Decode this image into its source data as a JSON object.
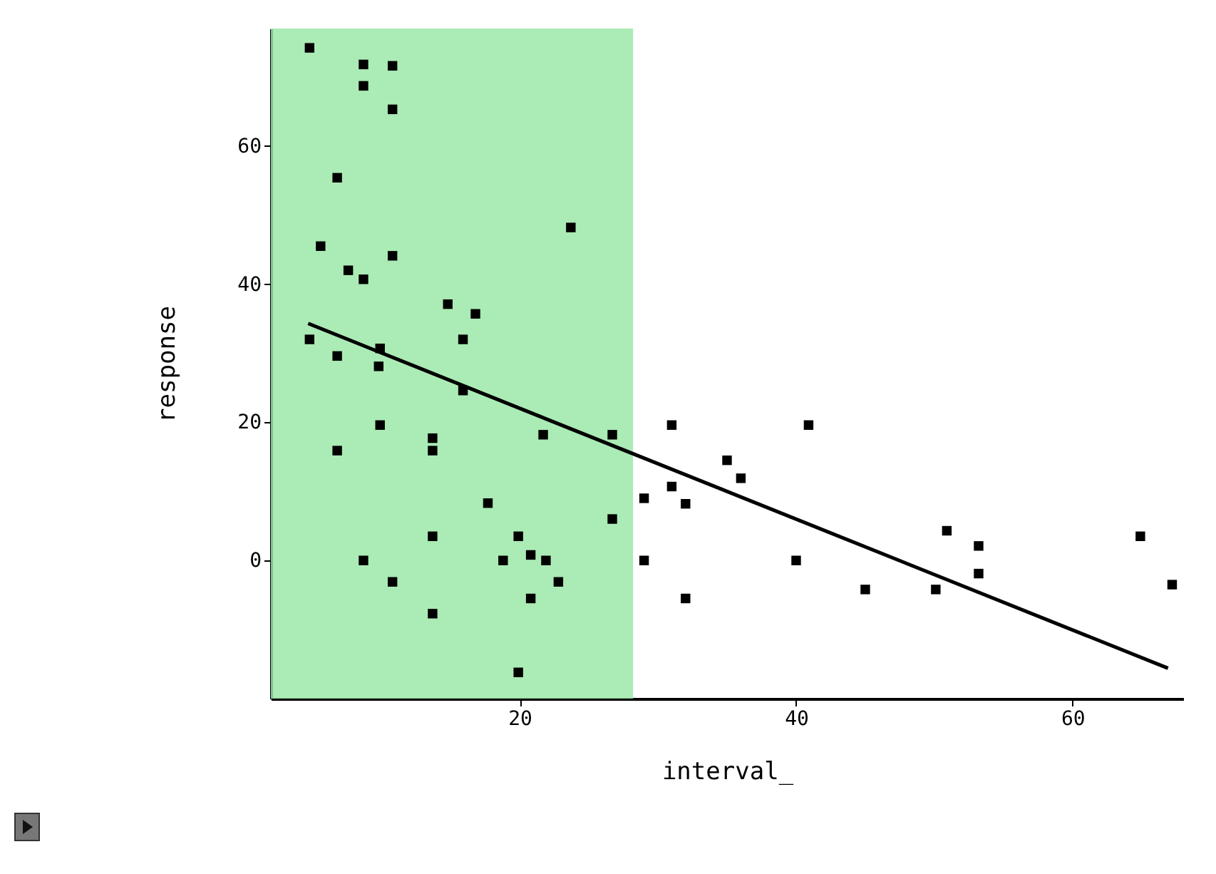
{
  "chart_data": {
    "type": "scatter",
    "xlabel": "interval_",
    "ylabel": "response",
    "xlim": [
      2,
      68
    ],
    "ylim": [
      -20,
      77
    ],
    "xticks": [
      20,
      40,
      60
    ],
    "yticks": [
      0,
      20,
      40,
      60
    ],
    "grid": false,
    "bands": [
      {
        "axis": "x",
        "from": 2,
        "to": 28.2,
        "color": "#9ce8a8"
      }
    ],
    "series": [
      {
        "type": "scatter",
        "marker": "square",
        "color": "#000000",
        "x": [
          4.8,
          8.7,
          8.7,
          10.8,
          10.8,
          6.8,
          23.7,
          5.6,
          10.8,
          7.6,
          8.7,
          14.8,
          16.8,
          15.9,
          4.8,
          6.8,
          9.9,
          9.8,
          15.9,
          9.9,
          21.7,
          26.7,
          6.8,
          13.7,
          13.7,
          17.7,
          26.7,
          13.7,
          19.9,
          8.7,
          18.8,
          20.8,
          21.9,
          10.8,
          22.8,
          20.8,
          13.7,
          19.9,
          31.0,
          40.9,
          35.0,
          36.0,
          31.0,
          29.0,
          32.0,
          29.0,
          40.0,
          32.0,
          45.0,
          50.9,
          53.2,
          53.2,
          50.1,
          64.9,
          67.2
        ],
        "values": [
          74.2,
          71.8,
          68.7,
          71.6,
          65.3,
          55.4,
          48.2,
          45.5,
          44.1,
          42.0,
          40.7,
          37.1,
          35.7,
          32.0,
          32.0,
          29.6,
          30.7,
          28.1,
          24.6,
          19.6,
          18.2,
          18.2,
          15.9,
          17.7,
          15.9,
          8.3,
          6.0,
          3.5,
          3.5,
          0,
          0,
          0.8,
          0,
          -3.1,
          -3.1,
          -5.5,
          -7.7,
          -16.2,
          19.6,
          19.6,
          14.5,
          11.9,
          10.7,
          9.0,
          8.2,
          0,
          0,
          -5.5,
          -4.2,
          4.3,
          2.1,
          -1.9,
          -4.2,
          3.5,
          -3.5
        ]
      },
      {
        "type": "line",
        "marker": "none",
        "color": "#000000",
        "x": [
          4.7,
          66.9
        ],
        "values": [
          34.3,
          -15.6
        ]
      }
    ]
  }
}
